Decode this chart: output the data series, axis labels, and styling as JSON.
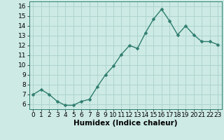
{
  "x": [
    0,
    1,
    2,
    3,
    4,
    5,
    6,
    7,
    8,
    9,
    10,
    11,
    12,
    13,
    14,
    15,
    16,
    17,
    18,
    19,
    20,
    21,
    22,
    23
  ],
  "y": [
    7.0,
    7.5,
    7.0,
    6.3,
    5.9,
    5.9,
    6.3,
    6.5,
    7.8,
    9.0,
    9.9,
    11.1,
    12.0,
    11.7,
    13.3,
    14.7,
    15.7,
    14.5,
    13.1,
    14.0,
    13.1,
    12.4,
    12.4,
    12.1
  ],
  "line_color": "#2e7d6e",
  "marker_color": "#2e7d6e",
  "bg_color": "#cdeae5",
  "grid_color": "#aed4ce",
  "xlabel": "Humidex (Indice chaleur)",
  "ylim": [
    5.5,
    16.5
  ],
  "xlim": [
    -0.5,
    23.5
  ],
  "yticks": [
    6,
    7,
    8,
    9,
    10,
    11,
    12,
    13,
    14,
    15,
    16
  ],
  "xticks": [
    0,
    1,
    2,
    3,
    4,
    5,
    6,
    7,
    8,
    9,
    10,
    11,
    12,
    13,
    14,
    15,
    16,
    17,
    18,
    19,
    20,
    21,
    22,
    23
  ],
  "xtick_labels": [
    "0",
    "1",
    "2",
    "3",
    "4",
    "5",
    "6",
    "7",
    "8",
    "9",
    "10",
    "11",
    "12",
    "13",
    "14",
    "15",
    "16",
    "17",
    "18",
    "19",
    "20",
    "21",
    "22",
    "23"
  ],
  "line_width": 1.0,
  "marker_size": 2.5,
  "tick_fontsize": 6.5,
  "xlabel_fontsize": 7.5
}
